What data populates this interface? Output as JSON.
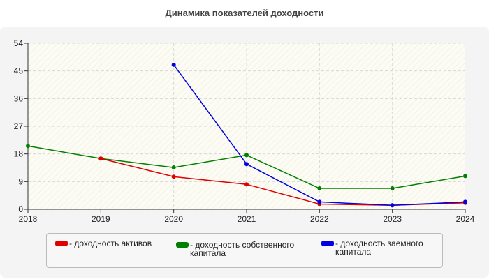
{
  "chart_data": {
    "type": "line",
    "title": "Динамика показателей доходности",
    "xlabel": "",
    "ylabel": "",
    "categories": [
      "2018",
      "2019",
      "2020",
      "2021",
      "2022",
      "2023",
      "2024"
    ],
    "ylim": [
      0,
      54
    ],
    "yticks": [
      "0",
      "9",
      "18",
      "27",
      "36",
      "45",
      "54"
    ],
    "grid": true,
    "legend_position": "bottom",
    "series": [
      {
        "name": "- доходность активов",
        "color": "#e00000",
        "values": [
          null,
          16.5,
          10.6,
          8.1,
          1.7,
          1.3,
          2.1
        ]
      },
      {
        "name": "- доходность собственного капитала",
        "color": "#008000",
        "values": [
          20.6,
          16.5,
          13.6,
          17.6,
          6.8,
          6.8,
          10.8
        ]
      },
      {
        "name": "- доходность заемного капитала",
        "color": "#0000e0",
        "values": [
          null,
          null,
          47.0,
          14.7,
          2.4,
          1.3,
          2.4
        ]
      }
    ]
  }
}
